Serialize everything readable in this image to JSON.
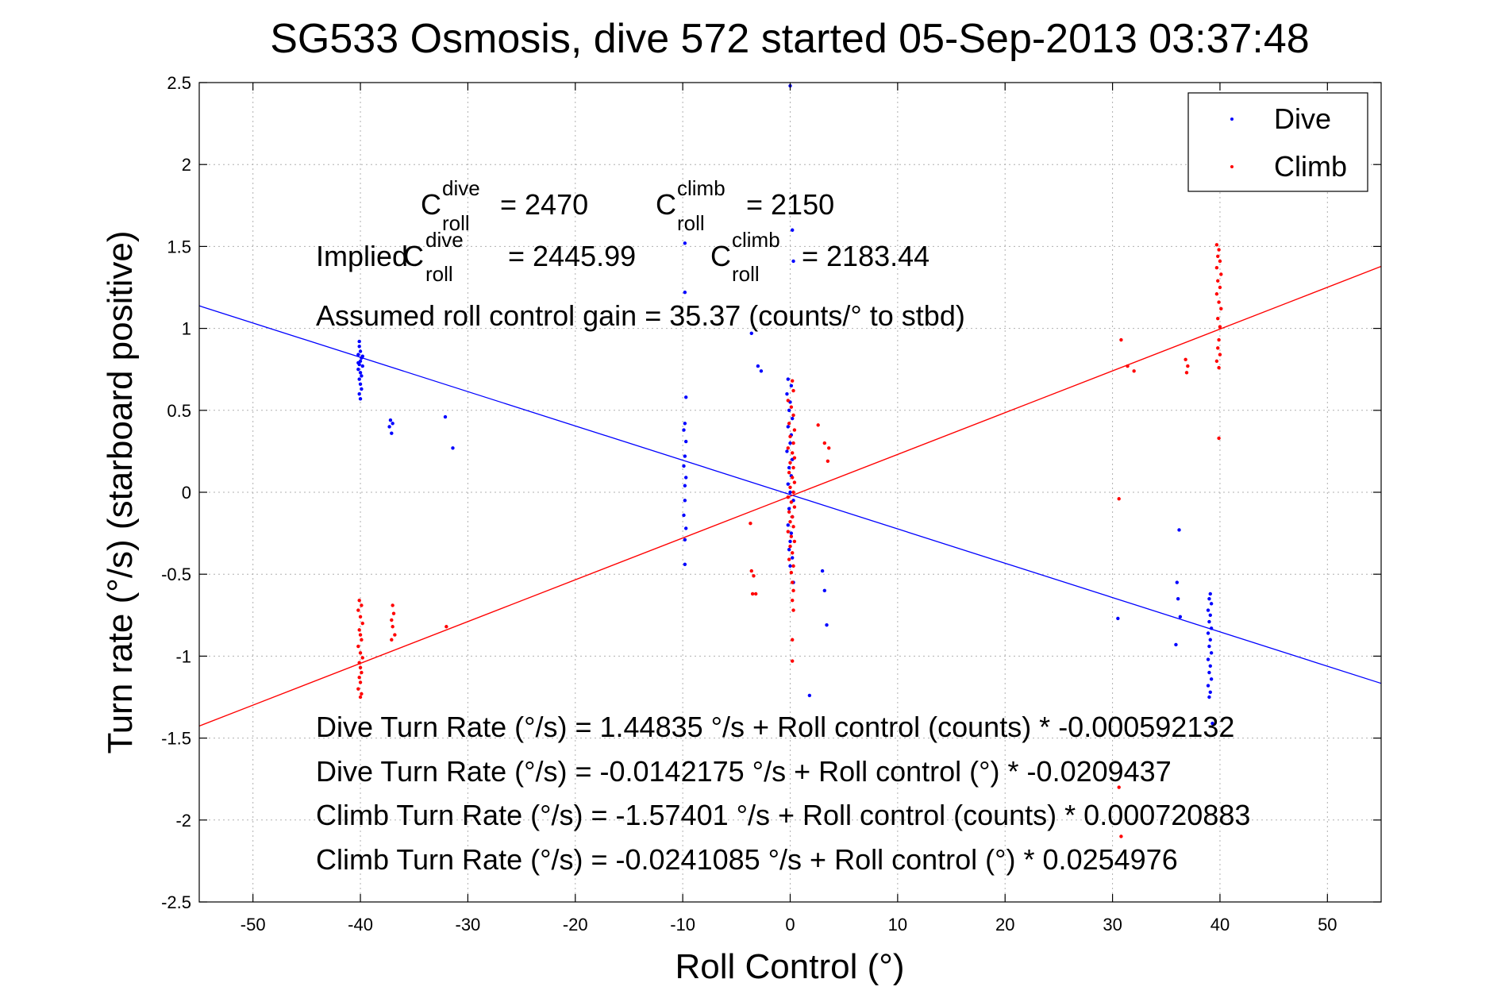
{
  "chart_data": {
    "type": "scatter",
    "title": "SG533 Osmosis, dive 572 started 05-Sep-2013 03:37:48",
    "xlabel": "Roll Control (°)",
    "ylabel": "Turn rate (°/s)  (starboard positive)",
    "xlim": [
      -55,
      55
    ],
    "ylim": [
      -2.5,
      2.5
    ],
    "xticks": [
      -50,
      -40,
      -30,
      -20,
      -10,
      0,
      10,
      20,
      30,
      40,
      50
    ],
    "yticks": [
      -2.5,
      -2,
      -1.5,
      -1,
      -0.5,
      0,
      0.5,
      1,
      1.5,
      2,
      2.5
    ],
    "grid": true,
    "legend_position": "top-right",
    "colors": {
      "dive": "#0000ff",
      "climb": "#ff0000"
    },
    "series": [
      {
        "name": "Dive",
        "color": "#0000ff",
        "points": [
          [
            -40.1,
            0.92
          ],
          [
            -40.1,
            0.89
          ],
          [
            -40.0,
            0.86
          ],
          [
            -40.2,
            0.84
          ],
          [
            -39.9,
            0.82
          ],
          [
            -40.0,
            0.8
          ],
          [
            -40.1,
            0.78
          ],
          [
            -39.8,
            0.77
          ],
          [
            -40.2,
            0.75
          ],
          [
            -40.0,
            0.73
          ],
          [
            -39.9,
            0.71
          ],
          [
            -40.1,
            0.69
          ],
          [
            -40.0,
            0.66
          ],
          [
            -39.9,
            0.63
          ],
          [
            -40.1,
            0.6
          ],
          [
            -40.0,
            0.57
          ],
          [
            -39.8,
            0.83
          ],
          [
            -40.2,
            0.79
          ],
          [
            -37.2,
            0.44
          ],
          [
            -37.0,
            0.42
          ],
          [
            -37.3,
            0.4
          ],
          [
            -37.1,
            0.36
          ],
          [
            -32.1,
            0.46
          ],
          [
            -31.4,
            0.27
          ],
          [
            -9.8,
            1.52
          ],
          [
            -9.8,
            1.22
          ],
          [
            -9.7,
            0.58
          ],
          [
            -9.8,
            0.42
          ],
          [
            -9.9,
            0.38
          ],
          [
            -9.7,
            0.31
          ],
          [
            -9.8,
            0.22
          ],
          [
            -9.9,
            0.16
          ],
          [
            -9.7,
            0.09
          ],
          [
            -9.8,
            0.04
          ],
          [
            -9.8,
            -0.05
          ],
          [
            -9.9,
            -0.14
          ],
          [
            -9.7,
            -0.22
          ],
          [
            -9.8,
            -0.29
          ],
          [
            -9.8,
            -0.44
          ],
          [
            -3.6,
            0.97
          ],
          [
            -3.0,
            0.77
          ],
          [
            -2.7,
            0.74
          ],
          [
            0.0,
            2.48
          ],
          [
            0.2,
            1.6
          ],
          [
            0.3,
            1.41
          ],
          [
            -0.2,
            0.69
          ],
          [
            0.1,
            0.65
          ],
          [
            -0.3,
            0.6
          ],
          [
            0.0,
            0.55
          ],
          [
            -0.1,
            0.5
          ],
          [
            0.2,
            0.45
          ],
          [
            -0.2,
            0.4
          ],
          [
            0.1,
            0.35
          ],
          [
            0.0,
            0.3
          ],
          [
            -0.3,
            0.25
          ],
          [
            0.2,
            0.2
          ],
          [
            -0.1,
            0.15
          ],
          [
            0.1,
            0.1
          ],
          [
            -0.2,
            0.05
          ],
          [
            0.0,
            0.0
          ],
          [
            0.3,
            -0.05
          ],
          [
            -0.1,
            -0.1
          ],
          [
            0.2,
            -0.15
          ],
          [
            -0.2,
            -0.2
          ],
          [
            0.1,
            -0.25
          ],
          [
            0.0,
            -0.3
          ],
          [
            -0.1,
            -0.35
          ],
          [
            0.2,
            -0.4
          ],
          [
            0.0,
            -0.45
          ],
          [
            0.3,
            -0.55
          ],
          [
            3.0,
            -0.48
          ],
          [
            3.2,
            -0.6
          ],
          [
            3.4,
            -0.81
          ],
          [
            1.8,
            -1.24
          ],
          [
            30.5,
            -0.77
          ],
          [
            36.2,
            -0.23
          ],
          [
            36.0,
            -0.55
          ],
          [
            36.1,
            -0.65
          ],
          [
            36.3,
            -0.76
          ],
          [
            35.9,
            -0.93
          ],
          [
            39.1,
            -0.62
          ],
          [
            39.0,
            -0.65
          ],
          [
            39.2,
            -0.68
          ],
          [
            38.9,
            -0.72
          ],
          [
            39.1,
            -0.75
          ],
          [
            39.0,
            -0.79
          ],
          [
            39.2,
            -0.83
          ],
          [
            38.9,
            -0.86
          ],
          [
            39.1,
            -0.9
          ],
          [
            39.0,
            -0.94
          ],
          [
            39.2,
            -0.98
          ],
          [
            38.9,
            -1.02
          ],
          [
            39.1,
            -1.06
          ],
          [
            39.0,
            -1.1
          ],
          [
            39.2,
            -1.14
          ],
          [
            38.9,
            -1.18
          ],
          [
            39.1,
            -1.22
          ],
          [
            39.0,
            -1.25
          ],
          [
            39.3,
            -1.41
          ]
        ]
      },
      {
        "name": "Climb",
        "color": "#ff0000",
        "points": [
          [
            -40.1,
            -0.66
          ],
          [
            -39.9,
            -0.69
          ],
          [
            -40.2,
            -0.72
          ],
          [
            -40.0,
            -0.76
          ],
          [
            -39.8,
            -0.8
          ],
          [
            -40.1,
            -0.84
          ],
          [
            -40.0,
            -0.87
          ],
          [
            -39.9,
            -0.9
          ],
          [
            -40.2,
            -0.94
          ],
          [
            -40.0,
            -0.98
          ],
          [
            -39.8,
            -1.01
          ],
          [
            -40.1,
            -1.04
          ],
          [
            -40.0,
            -1.07
          ],
          [
            -39.9,
            -1.1
          ],
          [
            -40.1,
            -1.13
          ],
          [
            -40.0,
            -1.16
          ],
          [
            -40.2,
            -1.2
          ],
          [
            -39.9,
            -1.23
          ],
          [
            -40.0,
            -1.25
          ],
          [
            -37.0,
            -0.69
          ],
          [
            -36.9,
            -0.74
          ],
          [
            -37.1,
            -0.78
          ],
          [
            -37.0,
            -0.82
          ],
          [
            -36.8,
            -0.87
          ],
          [
            -37.1,
            -0.9
          ],
          [
            -32.0,
            -0.82
          ],
          [
            -3.7,
            -0.19
          ],
          [
            -3.6,
            -0.48
          ],
          [
            -3.4,
            -0.51
          ],
          [
            -3.5,
            -0.62
          ],
          [
            -3.2,
            -0.62
          ],
          [
            0.2,
            0.68
          ],
          [
            0.3,
            0.62
          ],
          [
            -0.2,
            0.56
          ],
          [
            0.1,
            0.52
          ],
          [
            0.3,
            0.47
          ],
          [
            -0.1,
            0.42
          ],
          [
            0.4,
            0.38
          ],
          [
            0.0,
            0.34
          ],
          [
            0.3,
            0.3
          ],
          [
            -0.2,
            0.27
          ],
          [
            0.2,
            0.24
          ],
          [
            0.4,
            0.21
          ],
          [
            0.0,
            0.18
          ],
          [
            0.3,
            0.15
          ],
          [
            -0.1,
            0.12
          ],
          [
            0.2,
            0.09
          ],
          [
            0.4,
            0.06
          ],
          [
            0.0,
            0.03
          ],
          [
            0.3,
            0.0
          ],
          [
            -0.2,
            -0.03
          ],
          [
            0.1,
            -0.06
          ],
          [
            0.4,
            -0.09
          ],
          [
            -0.1,
            -0.12
          ],
          [
            0.2,
            -0.15
          ],
          [
            0.0,
            -0.18
          ],
          [
            0.3,
            -0.21
          ],
          [
            -0.2,
            -0.24
          ],
          [
            0.1,
            -0.27
          ],
          [
            0.4,
            -0.3
          ],
          [
            0.0,
            -0.33
          ],
          [
            0.2,
            -0.37
          ],
          [
            -0.1,
            -0.41
          ],
          [
            0.3,
            -0.45
          ],
          [
            0.1,
            -0.49
          ],
          [
            0.2,
            -0.55
          ],
          [
            0.3,
            -0.6
          ],
          [
            0.2,
            -0.66
          ],
          [
            0.3,
            -0.72
          ],
          [
            0.2,
            -0.9
          ],
          [
            0.2,
            -1.03
          ],
          [
            2.6,
            0.41
          ],
          [
            3.2,
            0.3
          ],
          [
            3.6,
            0.27
          ],
          [
            3.5,
            0.19
          ],
          [
            30.6,
            -0.04
          ],
          [
            30.8,
            0.93
          ],
          [
            31.4,
            0.77
          ],
          [
            32.0,
            0.74
          ],
          [
            36.8,
            0.81
          ],
          [
            37.0,
            0.77
          ],
          [
            36.9,
            0.73
          ],
          [
            30.6,
            -1.8
          ],
          [
            30.8,
            -2.1
          ],
          [
            39.7,
            1.51
          ],
          [
            39.9,
            1.48
          ],
          [
            39.8,
            1.44
          ],
          [
            40.0,
            1.41
          ],
          [
            39.7,
            1.37
          ],
          [
            40.1,
            1.33
          ],
          [
            39.8,
            1.29
          ],
          [
            40.0,
            1.25
          ],
          [
            39.7,
            1.21
          ],
          [
            39.9,
            1.16
          ],
          [
            40.1,
            1.12
          ],
          [
            39.8,
            1.06
          ],
          [
            40.0,
            1.01
          ],
          [
            39.9,
            0.93
          ],
          [
            39.8,
            0.88
          ],
          [
            40.0,
            0.84
          ],
          [
            39.7,
            0.8
          ],
          [
            39.9,
            0.76
          ],
          [
            39.9,
            0.33
          ]
        ]
      }
    ],
    "fits": [
      {
        "series": "Dive",
        "intercept": -0.0142175,
        "slope": -0.0209437,
        "color": "#0000ff"
      },
      {
        "series": "Climb",
        "intercept": -0.0241085,
        "slope": 0.0254976,
        "color": "#ff0000"
      }
    ],
    "annotations": {
      "croll_dive_value": "= 2470",
      "croll_climb_value": "= 2150",
      "implied_label": "Implied",
      "implied_dive_value": "= 2445.99",
      "implied_climb_value": "= 2183.44",
      "c_symbol": "C",
      "sup_dive": "dive",
      "sup_climb": "climb",
      "sub_roll": "roll",
      "gain": "Assumed roll control gain = 35.37 (counts/° to stbd)",
      "eq1": "Dive Turn Rate (°/s) = 1.44835 °/s + Roll control (counts) * -0.000592132",
      "eq2": "Dive Turn Rate (°/s) = -0.0142175 °/s + Roll control (°) * -0.0209437",
      "eq3": "Climb Turn Rate (°/s) = -1.57401 °/s + Roll control (counts) * 0.000720883",
      "eq4": "Climb Turn Rate (°/s) = -0.0241085 °/s + Roll control (°) * 0.0254976"
    }
  }
}
